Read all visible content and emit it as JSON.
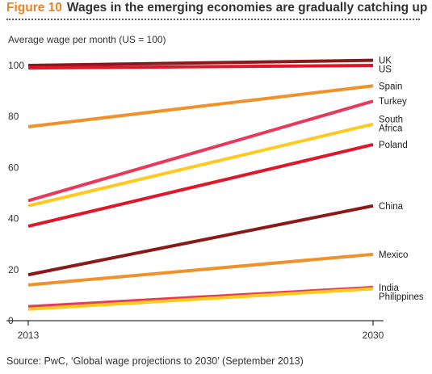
{
  "figure_label": "Figure 10",
  "figure_title": "Wages in the emerging economies are gradually catching up",
  "source": "Source: PwC, ‘Global wage projections to 2030’ (September 2013)",
  "chart_data": {
    "type": "line",
    "title": "Wages in the emerging economies are gradually catching up",
    "ylabel": "Average wage per month (US = 100)",
    "xlabel": "",
    "x": [
      "2013",
      "2030"
    ],
    "ylim": [
      0,
      100
    ],
    "yticks": [
      0,
      20,
      40,
      60,
      80,
      100
    ],
    "xticks": [
      "2013",
      "2030"
    ],
    "grid": false,
    "legend": "direct labels at right end of lines",
    "series": [
      {
        "name": "UK",
        "values": [
          100,
          102
        ],
        "color": "#8a1a1a"
      },
      {
        "name": "US",
        "values": [
          99,
          100
        ],
        "color": "#e0162b"
      },
      {
        "name": "Spain",
        "values": [
          76,
          92
        ],
        "color": "#f0922b"
      },
      {
        "name": "Turkey",
        "values": [
          47,
          86
        ],
        "color": "#e8395a"
      },
      {
        "name": "South Africa",
        "label_lines": [
          "South",
          "Africa"
        ],
        "values": [
          45,
          77
        ],
        "color": "#ffc91e"
      },
      {
        "name": "Poland",
        "values": [
          37,
          69
        ],
        "color": "#e0162b"
      },
      {
        "name": "China",
        "values": [
          18,
          45
        ],
        "color": "#8a1a1a"
      },
      {
        "name": "Mexico",
        "values": [
          14,
          26
        ],
        "color": "#f0922b"
      },
      {
        "name": "India",
        "values": [
          5.5,
          13
        ],
        "color": "#e8395a"
      },
      {
        "name": "Philippines",
        "values": [
          4.5,
          12.5
        ],
        "color": "#ffc91e"
      }
    ]
  }
}
